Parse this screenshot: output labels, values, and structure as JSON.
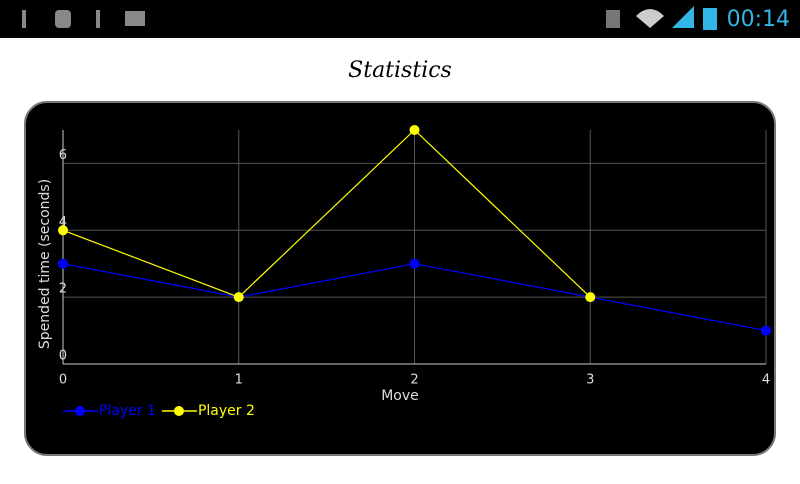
{
  "status_bar": {
    "time": "00:14"
  },
  "header": {
    "title": "Statistics"
  },
  "chart_data": {
    "type": "line",
    "x": [
      0,
      1,
      2,
      3,
      4
    ],
    "series": [
      {
        "name": "Player 1",
        "color": "#0000ff",
        "values": [
          3,
          2,
          3,
          2,
          1
        ]
      },
      {
        "name": "Player 2",
        "color": "#ffff00",
        "values": [
          4,
          2,
          7,
          2,
          null
        ]
      }
    ],
    "xlabel": "Move",
    "ylabel": "Spended time (seconds)",
    "xlim": [
      0,
      4
    ],
    "xticks": [
      0,
      1,
      2,
      3,
      4
    ],
    "ylim": [
      0,
      7
    ],
    "yticks": [
      0,
      2,
      4,
      6
    ],
    "grid": true
  }
}
